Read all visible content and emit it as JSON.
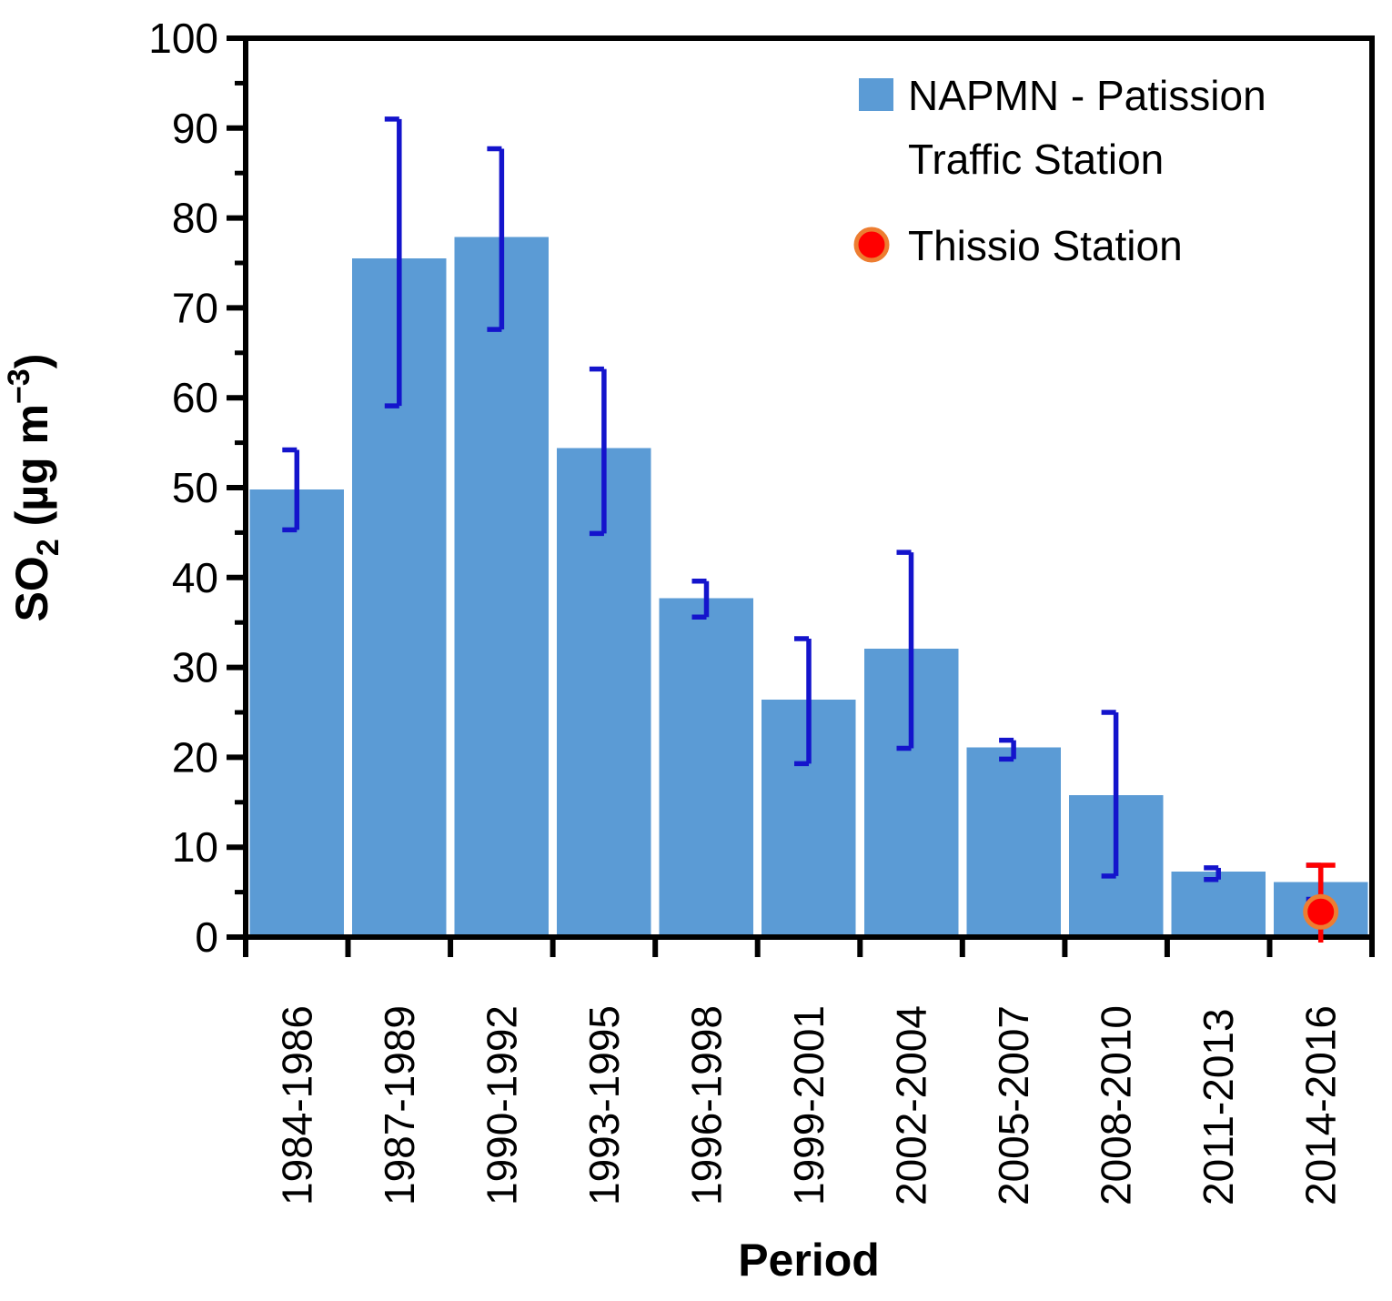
{
  "page": {
    "background": "#FFFFFF"
  },
  "chart_data": {
    "type": "bar",
    "title": "",
    "xlabel": "Period",
    "ylabel_parts": {
      "pre": "SO",
      "sub": "2",
      "mid": " (µg m",
      "sup": "−3",
      "post": ")"
    },
    "ylabel_plain": "SO2 (µg m−3)",
    "ylim": [
      0,
      100
    ],
    "y_major_ticks": [
      0,
      10,
      20,
      30,
      40,
      50,
      60,
      70,
      80,
      90,
      100
    ],
    "y_minor_step": 5,
    "grid": "off",
    "legend_position": "top-right-inside",
    "categories": [
      "1984-1986",
      "1987-1989",
      "1990-1992",
      "1993-1995",
      "1996-1998",
      "1999-2001",
      "2002-2004",
      "2005-2007",
      "2008-2010",
      "2011-2013",
      "2014-2016"
    ],
    "series": [
      {
        "name": "NAPMN - Patission Traffic Station",
        "legend_lines": [
          "NAPMN - Patission",
          "Traffic Station"
        ],
        "type": "bar",
        "color": "#5B9BD5",
        "error_color": "#1414CC",
        "values": [
          49.8,
          75.5,
          77.9,
          54.4,
          37.7,
          26.4,
          32.1,
          21.1,
          15.8,
          7.3,
          6.1
        ],
        "error_low": [
          45.3,
          59.1,
          67.6,
          44.9,
          35.6,
          19.3,
          21.0,
          19.8,
          6.8,
          6.4,
          4.2
        ],
        "error_high": [
          54.2,
          91.0,
          87.7,
          63.2,
          39.6,
          33.2,
          42.8,
          21.9,
          25.0,
          7.7,
          8.0
        ]
      },
      {
        "name": "Thissio Station",
        "legend_lines": [
          "Thissio Station"
        ],
        "type": "point",
        "category": "2014-2016",
        "value": 2.8,
        "error_low": 0,
        "error_high": 8.0,
        "marker": "circle",
        "marker_fill": "#FF0000",
        "marker_stroke": "#ED7D31",
        "error_color": "#FF0000"
      }
    ]
  },
  "layout_colors": {
    "axis": "#000000",
    "bar_blue": "#5B9BD5",
    "error_blue": "#1414CC",
    "thissio_red": "#FF0000",
    "thissio_orange": "#ED7D31"
  }
}
